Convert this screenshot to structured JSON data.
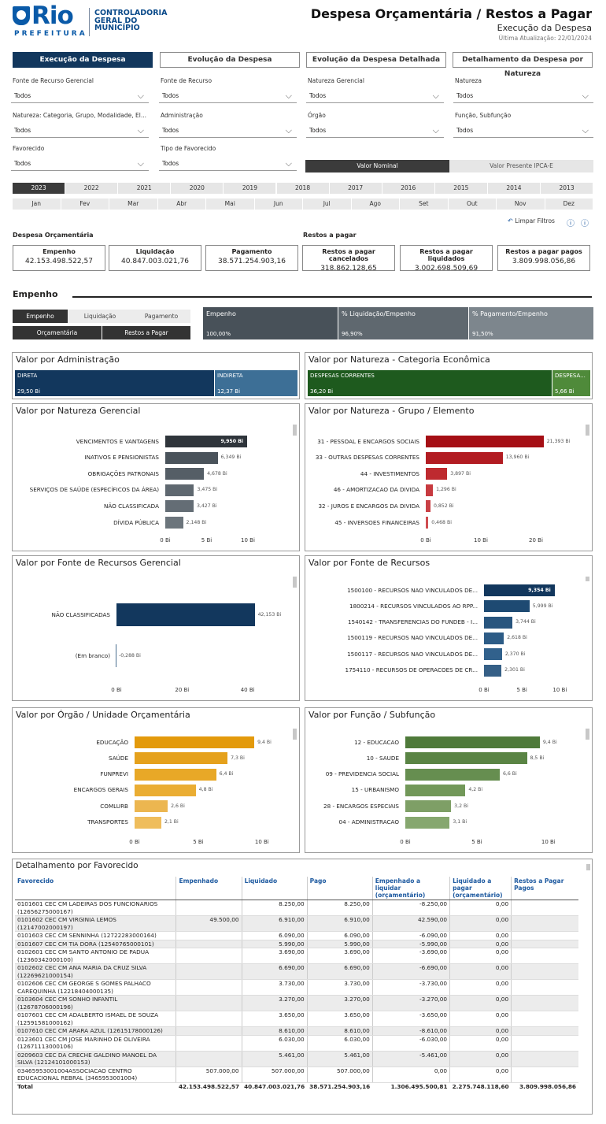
{
  "header": {
    "brand": "Rio",
    "prefeitura": "PREFEITURA",
    "org_line1": "CONTROLADORIA",
    "org_line2": "GERAL DO",
    "org_line3": "MUNICÍPIO",
    "title": "Despesa Orçamentária / Restos a Pagar",
    "subtitle": "Execução da Despesa",
    "updated": "Última Atualização: 22/01/2024"
  },
  "tabs": [
    "Execução da Despesa",
    "Evolução da Despesa",
    "Evolução da Despesa Detalhada",
    "Detalhamento da Despesa por Natureza"
  ],
  "filters": [
    {
      "label": "Fonte de Recurso Gerencial",
      "value": "Todos"
    },
    {
      "label": "Fonte de Recurso",
      "value": "Todos"
    },
    {
      "label": "Natureza Gerencial",
      "value": "Todos"
    },
    {
      "label": "Natureza",
      "value": "Todos"
    },
    {
      "label": "Natureza: Categoria, Grupo, Modalidade, El...",
      "value": "Todos"
    },
    {
      "label": "Administração",
      "value": "Todos"
    },
    {
      "label": "Órgão",
      "value": "Todos"
    },
    {
      "label": "Função, Subfunção",
      "value": "Todos"
    },
    {
      "label": "Favorecido",
      "value": "Todos"
    },
    {
      "label": "Tipo de Favorecido",
      "value": "Todos"
    }
  ],
  "value_toggle": {
    "nominal": "Valor Nominal",
    "presente": "Valor Presente IPCA-E"
  },
  "years": [
    "2023",
    "2022",
    "2021",
    "2020",
    "2019",
    "2018",
    "2017",
    "2016",
    "2015",
    "2014",
    "2013"
  ],
  "months": [
    "Jan",
    "Fev",
    "Mar",
    "Abr",
    "Mai",
    "Jun",
    "Jul",
    "Ago",
    "Set",
    "Out",
    "Nov",
    "Dez"
  ],
  "clear_filters": "Limpar Filtros",
  "summary": {
    "despesa_label": "Despesa Orçamentária",
    "restos_label": "Restos a pagar",
    "cards": [
      {
        "label": "Empenho",
        "value": "42.153.498.522,57"
      },
      {
        "label": "Liquidação",
        "value": "40.847.003.021,76"
      },
      {
        "label": "Pagamento",
        "value": "38.571.254.903,16"
      },
      {
        "label": "Restos a pagar cancelados",
        "value": "318.862.128,65"
      },
      {
        "label": "Restos a pagar liquidados",
        "value": "3.002.698.509,69"
      },
      {
        "label": "Restos a pagar pagos",
        "value": "3.809.998.056,86"
      }
    ]
  },
  "empenho_section": {
    "title": "Empenho",
    "buttons": [
      "Empenho",
      "Liquidação",
      "Pagamento",
      "Orçamentária",
      "Restos a Pagar"
    ],
    "kpis": [
      {
        "label": "Empenho",
        "value": "100,00%"
      },
      {
        "label": "% Liquidação/Empenho",
        "value": "96,90%"
      },
      {
        "label": "% Pagamento/Empenho",
        "value": "91,50%"
      }
    ]
  },
  "admin": {
    "title": "Valor por Administração",
    "items": [
      {
        "label": "DIRETA",
        "value": "29,50 Bi",
        "share": 0.705
      },
      {
        "label": "INDIRETA",
        "value": "12,37 Bi",
        "share": 0.295
      }
    ]
  },
  "categoria": {
    "title": "Valor por Natureza - Categoria Econômica",
    "items": [
      {
        "label": "DESPESAS CORRENTES",
        "value": "36,20 Bi",
        "share": 0.865
      },
      {
        "label": "DESPESA...",
        "value": "5,66 Bi",
        "share": 0.135
      }
    ]
  },
  "colors": {
    "navy": "#12375d",
    "dark": "#33393f",
    "red": "#a50f15",
    "gold": "#e8a317",
    "green": "#4f7a3a",
    "slate": "#485159"
  },
  "charts": {
    "nat_gerencial": {
      "title": "Valor por Natureza Gerencial",
      "ticks": [
        "0 Bi",
        "5 Bi",
        "10 Bi"
      ]
    },
    "grupo_elemento": {
      "title": "Valor por Natureza - Grupo / Elemento",
      "ticks": [
        "0 Bi",
        "10 Bi",
        "20 Bi"
      ]
    },
    "fonte_gerencial": {
      "title": "Valor por Fonte de Recursos Gerencial",
      "ticks": [
        "0 Bi",
        "20 Bi",
        "40 Bi"
      ]
    },
    "fonte": {
      "title": "Valor por Fonte de Recursos",
      "ticks": [
        "0 Bi",
        "5 Bi",
        "10 Bi"
      ]
    },
    "orgao": {
      "title": "Valor por Órgão / Unidade Orçamentária",
      "ticks": [
        "0 Bi",
        "5 Bi",
        "10 Bi"
      ]
    },
    "funcao": {
      "title": "Valor por Função / Subfunção",
      "ticks": [
        "0 Bi",
        "5 Bi",
        "10 Bi"
      ]
    }
  },
  "chart_data": [
    {
      "type": "bar",
      "title": "Valor por Natureza Gerencial",
      "categories": [
        "VENCIMENTOS E VANTAGENS",
        "INATIVOS E PENSIONISTAS",
        "OBRIGAÇÕES PATRONAIS",
        "SERVIÇOS DE SAÚDE (ESPECÍFICOS DA ÁREA)",
        "NÃO CLASSIFICADA",
        "DÍVIDA PÚBLICA"
      ],
      "values": [
        9.95,
        6.349,
        4.678,
        3.475,
        3.427,
        2.148
      ],
      "labels": [
        "9,950 Bi",
        "6,349 Bi",
        "4,678 Bi",
        "3,475 Bi",
        "3,427 Bi",
        "2,148 Bi"
      ],
      "xlim": [
        0,
        12
      ]
    },
    {
      "type": "bar",
      "title": "Valor por Natureza - Grupo / Elemento",
      "categories": [
        "31 - PESSOAL E ENCARGOS SOCIAIS",
        "33 - OUTRAS DESPESAS CORRENTES",
        "44 - INVESTIMENTOS",
        "46 - AMORTIZACAO DA DIVIDA",
        "32 - JUROS E ENCARGOS DA DIVIDA",
        "45 - INVERSOES FINANCEIRAS"
      ],
      "values": [
        21.393,
        13.96,
        3.897,
        1.296,
        0.852,
        0.468
      ],
      "labels": [
        "21,393 Bi",
        "13,960 Bi",
        "3,897 Bi",
        "1,296 Bi",
        "0,852 Bi",
        "0,468 Bi"
      ],
      "xlim": [
        0,
        25
      ]
    },
    {
      "type": "bar",
      "title": "Valor por Fonte de Recursos Gerencial",
      "categories": [
        "NÃO CLASSIFICADAS",
        "(Em branco)"
      ],
      "values": [
        42.153,
        -0.288
      ],
      "labels": [
        "42,153 Bi",
        "-0,288 Bi"
      ],
      "xlim": [
        0,
        48
      ]
    },
    {
      "type": "bar",
      "title": "Valor por Fonte de Recursos",
      "categories": [
        "1500100 - RECURSOS NAO VINCULADOS DE...",
        "1800214 - RECURSOS VINCULADOS AO RPP...",
        "1540142 - TRANSFERENCIAS DO FUNDEB - I...",
        "1500119 - RECURSOS NAO VINCULADOS DE...",
        "1500117 - RECURSOS NAO VINCULADOS DE...",
        "1754110 - RECURSOS DE OPERACOES DE CR..."
      ],
      "values": [
        9.354,
        5.999,
        3.744,
        2.618,
        2.37,
        2.301
      ],
      "labels": [
        "9,354 Bi",
        "5,999 Bi",
        "3,744 Bi",
        "2,618 Bi",
        "2,370 Bi",
        "2,301 Bi"
      ],
      "xlim": [
        0,
        11
      ]
    },
    {
      "type": "bar",
      "title": "Valor por Órgão / Unidade Orçamentária",
      "categories": [
        "EDUCAÇÃO",
        "SAÚDE",
        "FUNPREVI",
        "ENCARGOS GERAIS",
        "COMLURB",
        "TRANSPORTES"
      ],
      "values": [
        9.4,
        7.3,
        6.4,
        4.8,
        2.6,
        2.1
      ],
      "labels": [
        "9,4 Bi",
        "7,3 Bi",
        "6,4 Bi",
        "4,8 Bi",
        "2,6 Bi",
        "2,1 Bi"
      ],
      "xlim": [
        0,
        11
      ]
    },
    {
      "type": "bar",
      "title": "Valor por Função / Subfunção",
      "categories": [
        "12 - EDUCACAO",
        "10 - SAUDE",
        "09 - PREVIDENCIA SOCIAL",
        "15 - URBANISMO",
        "28 - ENCARGOS ESPECIAIS",
        "04 - ADMINISTRACAO"
      ],
      "values": [
        9.4,
        8.5,
        6.6,
        4.2,
        3.2,
        3.1
      ],
      "labels": [
        "9,4 Bi",
        "8,5 Bi",
        "6,6 Bi",
        "4,2 Bi",
        "3,2 Bi",
        "3,1 Bi"
      ],
      "xlim": [
        0,
        11
      ]
    }
  ],
  "favorecido": {
    "title": "Detalhamento por Favorecido",
    "columns": [
      "Favorecido",
      "Empenhado",
      "Liquidado",
      "Pago",
      "Empenhado a liquidar (orçamentário)",
      "Liquidado a pagar (orçamentário)",
      "Restos a Pagar Pagos"
    ],
    "rows": [
      [
        "0101601 CEC CM LADEIRAS DOS FUNCIONARIOS (12656275000167)",
        "",
        "8.250,00",
        "8.250,00",
        "-8.250,00",
        "0,00",
        ""
      ],
      [
        "0101602 CEC CM VIRGINIA LEMOS (12147002000197)",
        "49.500,00",
        "6.910,00",
        "6.910,00",
        "42.590,00",
        "0,00",
        ""
      ],
      [
        "0101603 CEC CM SENNINHA (12722283000164)",
        "",
        "6.090,00",
        "6.090,00",
        "-6.090,00",
        "0,00",
        ""
      ],
      [
        "0101607 CEC CM TIA DORA (12540765000101)",
        "",
        "5.990,00",
        "5.990,00",
        "-5.990,00",
        "0,00",
        ""
      ],
      [
        "0102601 CEC CM SANTO ANTONIO DE PADUA (12360342000100)",
        "",
        "3.690,00",
        "3.690,00",
        "-3.690,00",
        "0,00",
        ""
      ],
      [
        "0102602 CEC CM ANA MARIA DA CRUZ SILVA (12269621000154)",
        "",
        "6.690,00",
        "6.690,00",
        "-6.690,00",
        "0,00",
        ""
      ],
      [
        "0102606 CEC CM GEORGE S GOMES PALHACO CAREQUINHA (12218404000135)",
        "",
        "3.730,00",
        "3.730,00",
        "-3.730,00",
        "0,00",
        ""
      ],
      [
        "0103604 CEC CM SONHO INFANTIL (12678706000196)",
        "",
        "3.270,00",
        "3.270,00",
        "-3.270,00",
        "0,00",
        ""
      ],
      [
        "0107601 CEC CM ADALBERTO ISMAEL DE SOUZA (12591581000162)",
        "",
        "3.650,00",
        "3.650,00",
        "-3.650,00",
        "0,00",
        ""
      ],
      [
        "0107610 CEC CM ARARA AZUL (12615178000126)",
        "",
        "8.610,00",
        "8.610,00",
        "-8.610,00",
        "0,00",
        ""
      ],
      [
        "0123601 CEC CM JOSE MARINHO DE OLIVEIRA (12671113000106)",
        "",
        "6.030,00",
        "6.030,00",
        "-6.030,00",
        "0,00",
        ""
      ],
      [
        "0209603 CEC DA CRECHE GALDINO MANOEL DA SILVA (12124101000153)",
        "",
        "5.461,00",
        "5.461,00",
        "-5.461,00",
        "0,00",
        ""
      ],
      [
        "03465953001004ASSOCIACAO CENTRO EDUCACIONAL REBRAL (3465953001004)",
        "507.000,00",
        "507.000,00",
        "507.000,00",
        "0,00",
        "0,00",
        ""
      ]
    ],
    "total": [
      "Total",
      "42.153.498.522,57",
      "40.847.003.021,76",
      "38.571.254.903,16",
      "1.306.495.500,81",
      "2.275.748.118,60",
      "3.809.998.056,86"
    ]
  }
}
